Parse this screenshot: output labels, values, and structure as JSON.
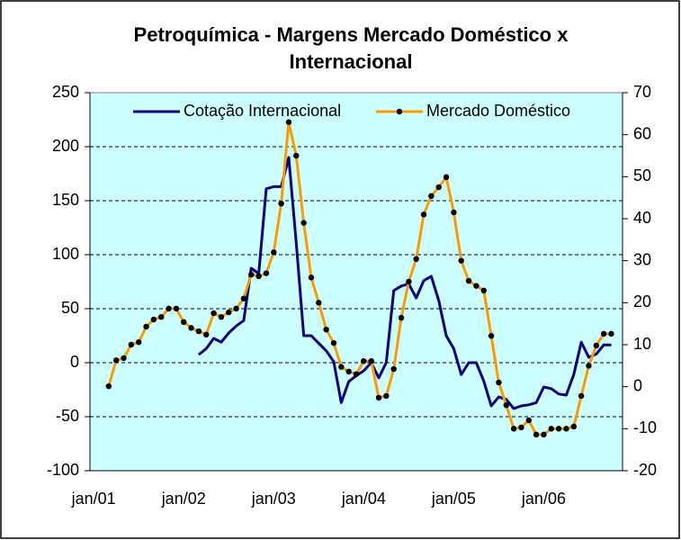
{
  "chart_data": {
    "type": "line",
    "title": "Petroquímica - Margens Mercado Doméstico x Internacional",
    "categories": [
      "jan/01",
      null,
      null,
      null,
      null,
      null,
      null,
      null,
      null,
      null,
      null,
      null,
      "jan/02",
      null,
      null,
      null,
      null,
      null,
      null,
      null,
      null,
      null,
      null,
      null,
      "jan/03",
      null,
      null,
      null,
      null,
      null,
      null,
      null,
      null,
      null,
      null,
      null,
      "jan/04",
      null,
      null,
      null,
      null,
      null,
      null,
      null,
      null,
      null,
      null,
      null,
      "jan/05",
      null,
      null,
      null,
      null,
      null,
      null,
      null,
      null,
      null,
      null,
      null,
      "jan/06",
      null,
      null,
      null,
      null,
      null,
      null,
      null,
      null,
      null,
      null
    ],
    "series": [
      {
        "name": "Cotação Internacional",
        "color": "#000080",
        "axis": "y",
        "values": [
          null,
          null,
          null,
          null,
          null,
          null,
          null,
          null,
          null,
          null,
          null,
          null,
          null,
          null,
          7.5,
          13,
          22.5,
          19,
          27.5,
          34,
          39,
          87.5,
          82.5,
          161,
          163,
          163,
          190,
          111,
          25,
          25,
          18,
          11,
          1,
          -37,
          -17.5,
          -12,
          -7.5,
          0,
          -14,
          0,
          66.7,
          71,
          73,
          60,
          76,
          80,
          57.5,
          25,
          13,
          -11,
          0,
          0,
          -17,
          -40,
          -31.7,
          -34,
          -42.5,
          -40,
          -39,
          -37,
          -22.5,
          -24,
          -29,
          -30,
          -11,
          19,
          5,
          8,
          16.5,
          16.5,
          null
        ]
      },
      {
        "name": "Mercado Doméstico",
        "color": "#ff9900",
        "axis": "y2",
        "marker_color": "#000000",
        "values": [
          null,
          null,
          0.1,
          6.3,
          6.8,
          10,
          10.6,
          14.3,
          16,
          16.6,
          18.6,
          18.6,
          15.4,
          14,
          13.2,
          12.4,
          17.5,
          16.6,
          17.7,
          18.6,
          21,
          26.7,
          26.3,
          27,
          32,
          43.6,
          63,
          55,
          39,
          26,
          20,
          13.6,
          10.4,
          4.7,
          3.6,
          3,
          6.1,
          6.1,
          -2.6,
          -2.2,
          4.2,
          16.4,
          25,
          30.4,
          41,
          45.4,
          47.5,
          49.9,
          41.5,
          30,
          25.2,
          24,
          22.9,
          12.1,
          1,
          -4.4,
          -10,
          -9.7,
          -8,
          -11.4,
          -11.4,
          -10,
          -10,
          -10,
          -9.5,
          -2.2,
          5,
          9.8,
          12.6,
          12.6,
          null
        ]
      }
    ],
    "ylim": [
      -100,
      250
    ],
    "yticks": [
      -100,
      -50,
      0,
      50,
      100,
      150,
      200,
      250
    ],
    "y2lim": [
      -20,
      70
    ],
    "y2ticks": [
      -20,
      -10,
      0,
      10,
      20,
      30,
      40,
      50,
      60,
      70
    ],
    "grid": true,
    "background": "#ccffff",
    "legend": "top"
  }
}
